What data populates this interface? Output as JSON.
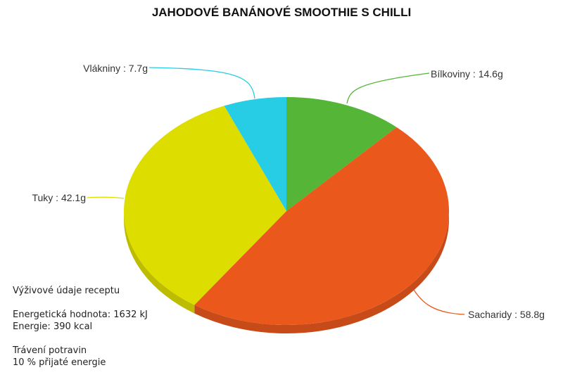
{
  "chart_data": {
    "type": "pie",
    "title": "JAHODOVÉ BANÁNOVÉ SMOOTHIE S CHILLI",
    "unit": "g",
    "slices": [
      {
        "name": "Bílkoviny",
        "value": 14.6,
        "label": "Bílkoviny : 14.6g",
        "color": "#55b536"
      },
      {
        "name": "Sacharidy",
        "value": 58.8,
        "label": "Sacharidy : 58.8g",
        "color": "#ea581c"
      },
      {
        "name": "Tuky",
        "value": 42.1,
        "label": "Tuky : 42.1g",
        "color": "#dedd00"
      },
      {
        "name": "Vlákniny",
        "value": 7.7,
        "label": "Vlákniny : 7.7g",
        "color": "#27cde4"
      }
    ],
    "start": "top",
    "direction": "clockwise",
    "style": "3d"
  },
  "info": {
    "heading": "Výživové údaje receptu",
    "energy_kj": "Energetická hodnota: 1632 kJ",
    "energy_kcal": "Energie: 390 kcal",
    "digestion_heading": "Trávení potravin",
    "digestion_value": "10 % přijaté energie"
  }
}
